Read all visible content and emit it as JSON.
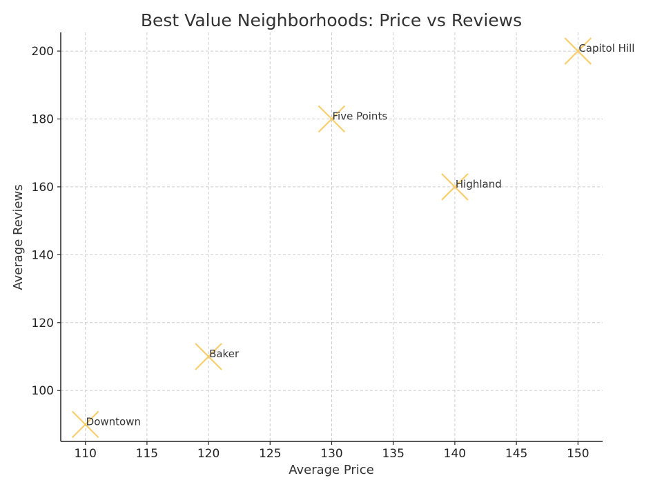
{
  "chart_data": {
    "type": "scatter",
    "title": "Best Value Neighborhoods: Price vs Reviews",
    "xlabel": "Average Price",
    "ylabel": "Average Reviews",
    "xlim": [
      108,
      152
    ],
    "ylim": [
      85,
      205.5
    ],
    "xticks": [
      110,
      115,
      120,
      125,
      130,
      135,
      140,
      145,
      150
    ],
    "yticks": [
      100,
      120,
      140,
      160,
      180,
      200
    ],
    "grid": true,
    "marker": "x",
    "marker_color": "#F7C95E",
    "points": [
      {
        "label": "Downtown",
        "x": 110,
        "y": 90
      },
      {
        "label": "Baker",
        "x": 120,
        "y": 110
      },
      {
        "label": "Five Points",
        "x": 130,
        "y": 180
      },
      {
        "label": "Highland",
        "x": 140,
        "y": 160
      },
      {
        "label": "Capitol Hill",
        "x": 150,
        "y": 200
      }
    ]
  }
}
